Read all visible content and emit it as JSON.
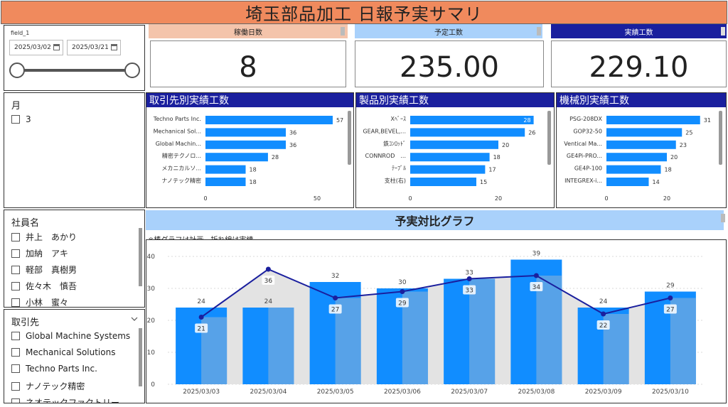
{
  "title": "埼玉部品加工 日報予実サマリ",
  "date_slicer": {
    "field_label": "field_1",
    "start_date": "2025/03/02",
    "end_date": "2025/03/21"
  },
  "month_slicer": {
    "title": "月",
    "items": [
      "3"
    ]
  },
  "employee_slicer": {
    "title": "社員名",
    "items": [
      "井上　あかり",
      "加納　アキ",
      "軽部　真樹男",
      "佐々木　慎吾",
      "小林　蜜々"
    ]
  },
  "client_slicer": {
    "title": "取引先",
    "items": [
      "Global Machine Systems",
      "Mechanical Solutions",
      "Techno Parts Inc.",
      "ナノテック精密",
      "ネオテックファクトリー"
    ]
  },
  "kpi": [
    {
      "label": "稼働日数",
      "value": "8",
      "color": "#f4c4ab"
    },
    {
      "label": "予定工数",
      "value": "235.00",
      "color": "#a9d1fb"
    },
    {
      "label": "実績工数",
      "value": "229.10",
      "color": "#1a1f9e"
    }
  ],
  "bar_charts": [
    {
      "title": "取引先別実績工数",
      "categories": [
        "Techno Parts Inc.",
        "Mechanical Sol...",
        "Global Machin...",
        "精密テクノロ...",
        "メカニカルソ...",
        "ナノテック精密"
      ],
      "values": [
        57,
        36,
        36,
        28,
        18,
        18
      ],
      "ticks": [
        "0",
        "50"
      ],
      "tick_values": [
        0,
        50
      ],
      "color": "#118dff"
    },
    {
      "title": "製品別実績工数",
      "categories": [
        "Xﾍﾞｰｽ",
        "GEAR,BEVEL,...",
        "鉄ｺﾝﾛｯﾄﾞ",
        "CONNROD　...",
        "ﾃｰﾌﾞﾙ",
        "支柱(右)"
      ],
      "values": [
        28,
        26,
        20,
        18,
        17,
        15
      ],
      "ticks": [
        "0",
        "20"
      ],
      "tick_values": [
        0,
        20
      ],
      "color": "#118dff"
    },
    {
      "title": "機械別実績工数",
      "categories": [
        "PSG-208DX",
        "GOP32-50",
        "Ventical Ma...",
        "GE4Pi-PRO...",
        "GE4P-100",
        "INTEGREX-i..."
      ],
      "values": [
        31,
        25,
        23,
        20,
        18,
        14
      ],
      "ticks": [
        "0",
        "20"
      ],
      "tick_values": [
        0,
        20
      ],
      "color": "#118dff"
    }
  ],
  "combo": {
    "title": "予実対比グラフ",
    "note": "※棒グラフは計画　折れ線は実績",
    "y_ticks": [
      "0",
      "10",
      "20",
      "30",
      "40"
    ]
  },
  "chart_data": {
    "type": "bar",
    "title": "予実対比グラフ",
    "categories": [
      "2025/03/03",
      "2025/03/04",
      "2025/03/05",
      "2025/03/06",
      "2025/03/07",
      "2025/03/08",
      "2025/03/09",
      "2025/03/10"
    ],
    "series": [
      {
        "values": [
          24,
          24,
          32,
          30,
          33,
          39,
          24,
          29
        ],
        "kind": "bar"
      },
      {
        "values": [
          21,
          36,
          27,
          29,
          33,
          34,
          22,
          27
        ],
        "kind": "line"
      }
    ],
    "ylim": [
      0,
      40
    ],
    "grid": true,
    "colors": {
      "bar": "#118dff",
      "bar_light": "#6fa9e0",
      "line": "#1a1f9e",
      "area": "#e3e3e3"
    }
  }
}
